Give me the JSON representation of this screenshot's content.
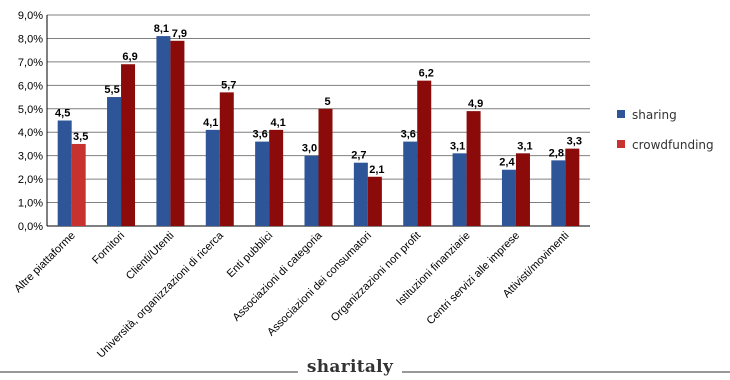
{
  "chart_data": {
    "type": "bar",
    "title": "",
    "xlabel": "",
    "ylabel": "",
    "ylim": [
      0,
      9
    ],
    "yticks": [
      "0,0%",
      "1,0%",
      "2,0%",
      "3,0%",
      "4,0%",
      "5,0%",
      "6,0%",
      "7,0%",
      "8,0%",
      "9,0%"
    ],
    "grid": true,
    "legend_position": "right",
    "categories": [
      "Altre piattaforme",
      "Fornitori",
      "Clienti/Utenti",
      "Università, organizzazioni di  ricerca",
      "Enti pubblici",
      "Associazioni di categoria",
      "Associazioni dei consumatori",
      "Organizzazioni non profit",
      "Istituzioni finanziarie",
      "Centri servizi alle imprese",
      "Attivisti/movimenti"
    ],
    "series": [
      {
        "name": "sharing",
        "color": "#2E5597",
        "values": [
          4.5,
          5.5,
          8.1,
          4.1,
          3.6,
          3.0,
          2.7,
          3.6,
          3.1,
          2.4,
          2.8
        ],
        "labels": [
          "4,5",
          "5,5",
          "8,1",
          "4,1",
          "3,6",
          "3,0",
          "2,7",
          "3,6",
          "3,1",
          "2,4",
          "2,8"
        ]
      },
      {
        "name": "crowdfunding",
        "color": "#8B0A0A",
        "first_color": "#C8322E",
        "values": [
          3.5,
          6.9,
          7.9,
          5.7,
          4.1,
          5.0,
          2.1,
          6.2,
          4.9,
          3.1,
          3.3
        ],
        "labels": [
          "3,5",
          "6,9",
          "7,9",
          "5,7",
          "4,1",
          "5",
          "2,1",
          "6,2",
          "4,9",
          "3,1",
          "3,3"
        ]
      }
    ]
  },
  "legend": {
    "items": [
      {
        "label": "sharing",
        "color": "#2E5597"
      },
      {
        "label": "crowdfunding",
        "color": "#C8322E"
      }
    ]
  },
  "footer": {
    "brand": "sharitaly"
  }
}
